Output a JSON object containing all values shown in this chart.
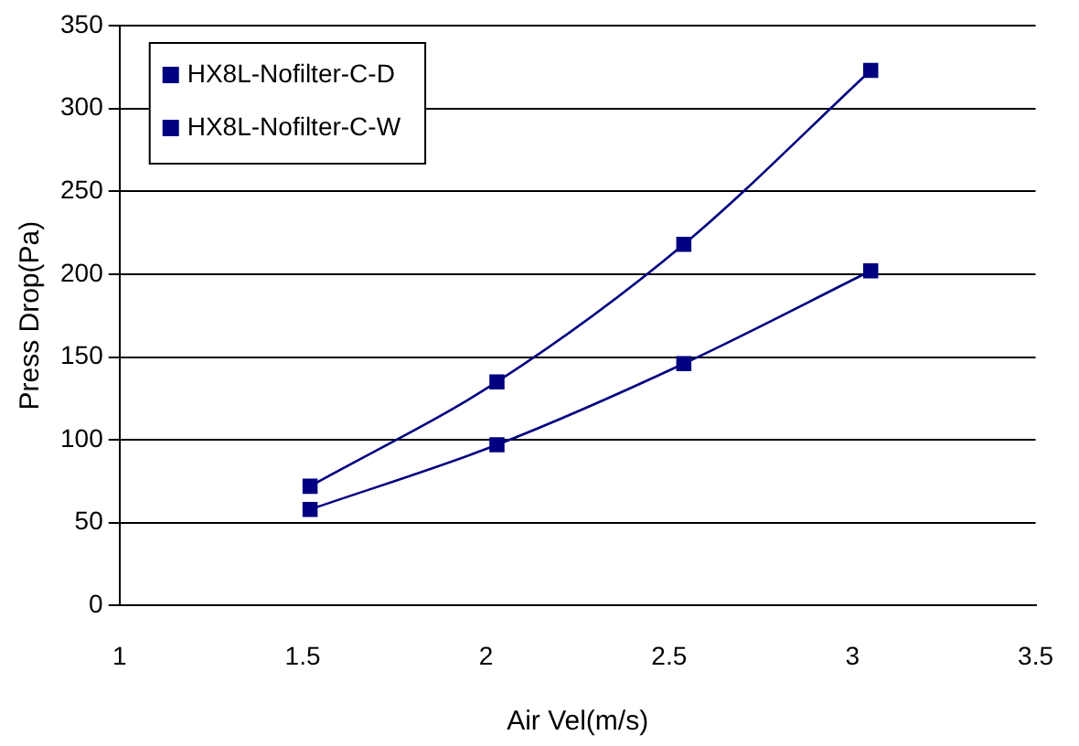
{
  "chart_data": {
    "type": "line",
    "xlabel": "Air Vel(m/s)",
    "ylabel": "Press Drop(Pa)",
    "xlim": [
      1,
      3.5
    ],
    "xticks": [
      1,
      1.5,
      2,
      2.5,
      3,
      3.5
    ],
    "ylim": [
      0,
      350
    ],
    "yticks": [
      0,
      50,
      100,
      150,
      200,
      250,
      300,
      350
    ],
    "grid": "y",
    "legend": "top left",
    "marker": "square",
    "line_style": "solid",
    "series": [
      {
        "name": "HX8L-Nofilter-C-D",
        "color": "#000080",
        "x": [
          1.52,
          2.03,
          2.54,
          3.05
        ],
        "values": [
          58,
          97,
          146,
          202
        ]
      },
      {
        "name": "HX8L-Nofilter-C-W",
        "color": "#000080",
        "x": [
          1.52,
          2.03,
          2.54,
          3.05
        ],
        "values": [
          72,
          135,
          218,
          323
        ]
      }
    ]
  }
}
